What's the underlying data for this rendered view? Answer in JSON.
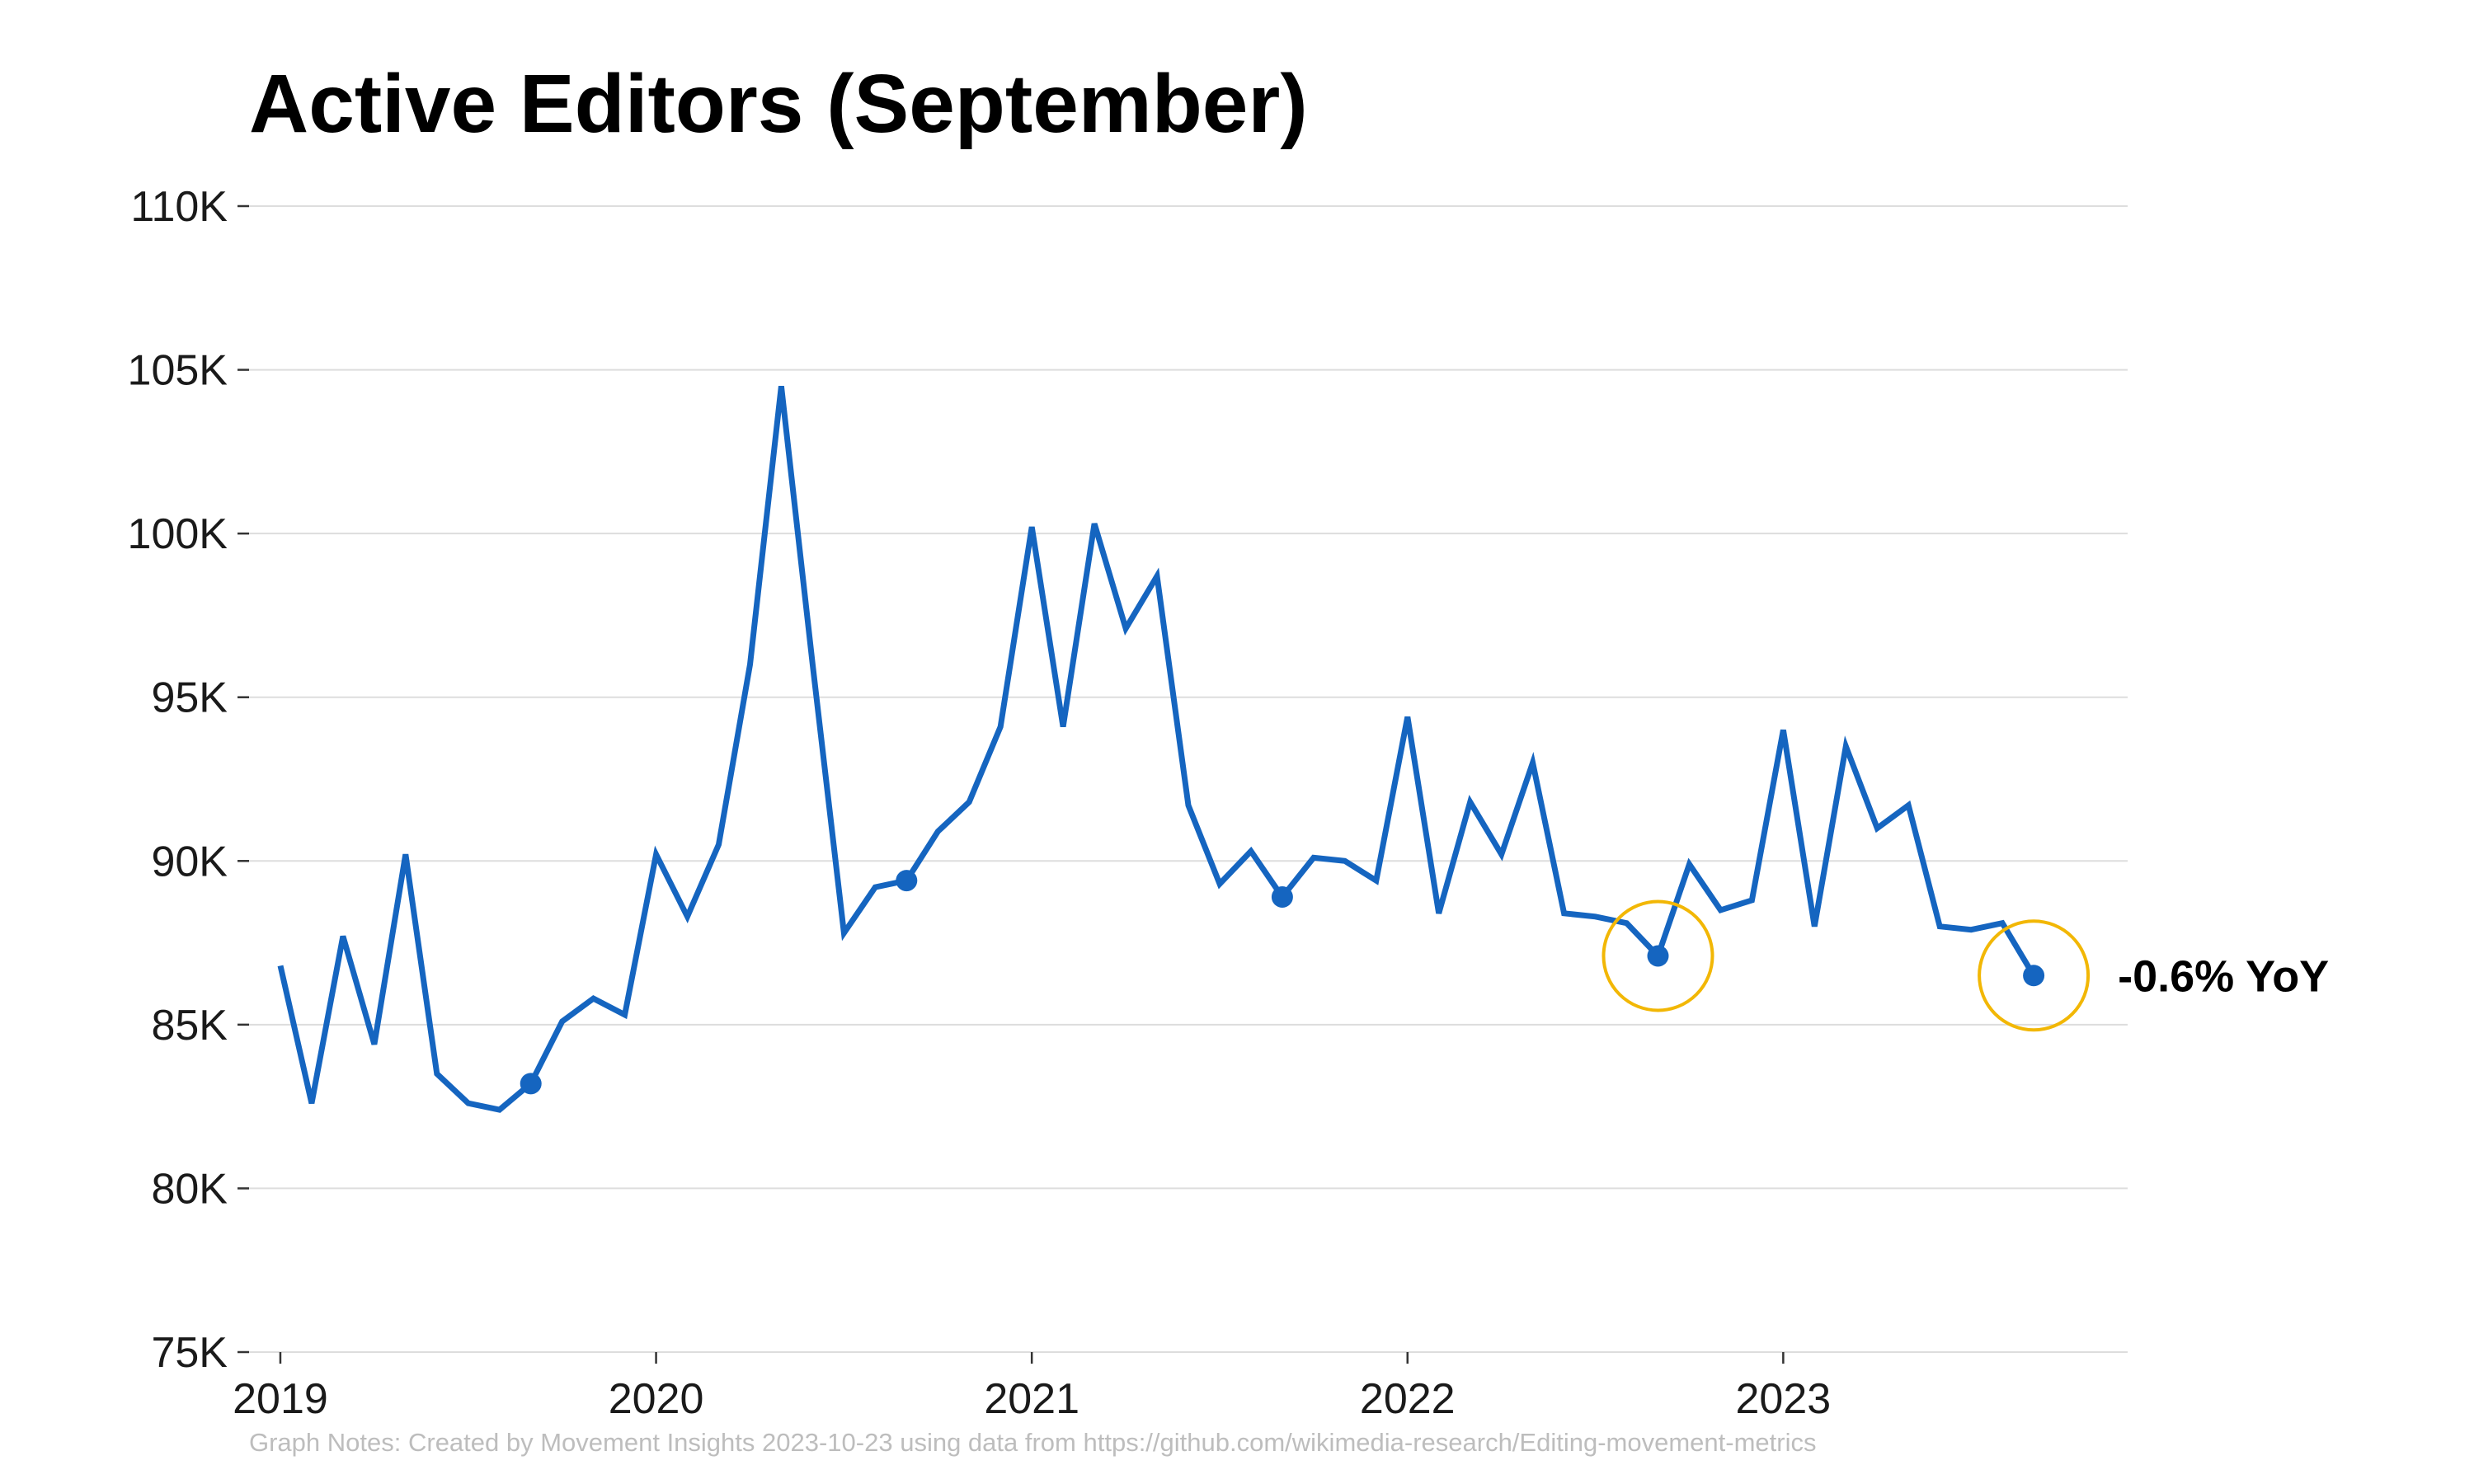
{
  "chart_data": {
    "type": "line",
    "title": "Active Editors (September)",
    "xlabel": "",
    "ylabel": "",
    "x_tick_labels": [
      "2019",
      "2020",
      "2021",
      "2022",
      "2023"
    ],
    "y_tick_labels": [
      "75K",
      "80K",
      "85K",
      "90K",
      "95K",
      "100K",
      "105K",
      "110K"
    ],
    "y_ticks": [
      75000,
      80000,
      85000,
      90000,
      95000,
      100000,
      105000,
      110000
    ],
    "ylim": [
      75000,
      110000
    ],
    "xlim": [
      "2018-12",
      "2023-12"
    ],
    "grid": "horizontal",
    "legend": "none",
    "series": [
      {
        "color": "#1565c0",
        "x": [
          "2019-01",
          "2019-02",
          "2019-03",
          "2019-04",
          "2019-05",
          "2019-06",
          "2019-07",
          "2019-08",
          "2019-09",
          "2019-10",
          "2019-11",
          "2019-12",
          "2020-01",
          "2020-02",
          "2020-03",
          "2020-04",
          "2020-05",
          "2020-06",
          "2020-07",
          "2020-08",
          "2020-09",
          "2020-10",
          "2020-11",
          "2020-12",
          "2021-01",
          "2021-02",
          "2021-03",
          "2021-04",
          "2021-05",
          "2021-06",
          "2021-07",
          "2021-08",
          "2021-09",
          "2021-10",
          "2021-11",
          "2021-12",
          "2022-01",
          "2022-02",
          "2022-03",
          "2022-04",
          "2022-05",
          "2022-06",
          "2022-07",
          "2022-08",
          "2022-09",
          "2022-10",
          "2022-11",
          "2022-12",
          "2023-01",
          "2023-02",
          "2023-03",
          "2023-04",
          "2023-05",
          "2023-06",
          "2023-07",
          "2023-08",
          "2023-09"
        ],
        "values": [
          86800,
          82600,
          87700,
          84400,
          90200,
          83500,
          82600,
          82400,
          83200,
          85100,
          85800,
          85300,
          90200,
          88300,
          90500,
          96000,
          104500,
          96000,
          87800,
          89200,
          89400,
          90900,
          91800,
          94100,
          100200,
          94100,
          100300,
          97100,
          98700,
          91700,
          89300,
          90300,
          88900,
          90100,
          90000,
          89400,
          94400,
          88400,
          91800,
          90200,
          93000,
          88400,
          88300,
          88100,
          87100,
          89900,
          88500,
          88800,
          94000,
          88000,
          93500,
          91000,
          91700,
          88000,
          87900,
          88100,
          86500
        ],
        "highlighted_points": [
          "2019-09",
          "2020-09",
          "2021-09",
          "2022-09",
          "2023-09"
        ],
        "circled_points": [
          "2022-09",
          "2023-09"
        ]
      }
    ],
    "annotations": [
      {
        "text": "-0.6% YoY",
        "x": "2023-09",
        "y": 86500
      }
    ],
    "highlight_color": "#f2b705",
    "note": "Graph Notes: Created by Movement Insights 2023-10-23 using data from https://github.com/wikimedia-research/Editing-movement-metrics"
  }
}
